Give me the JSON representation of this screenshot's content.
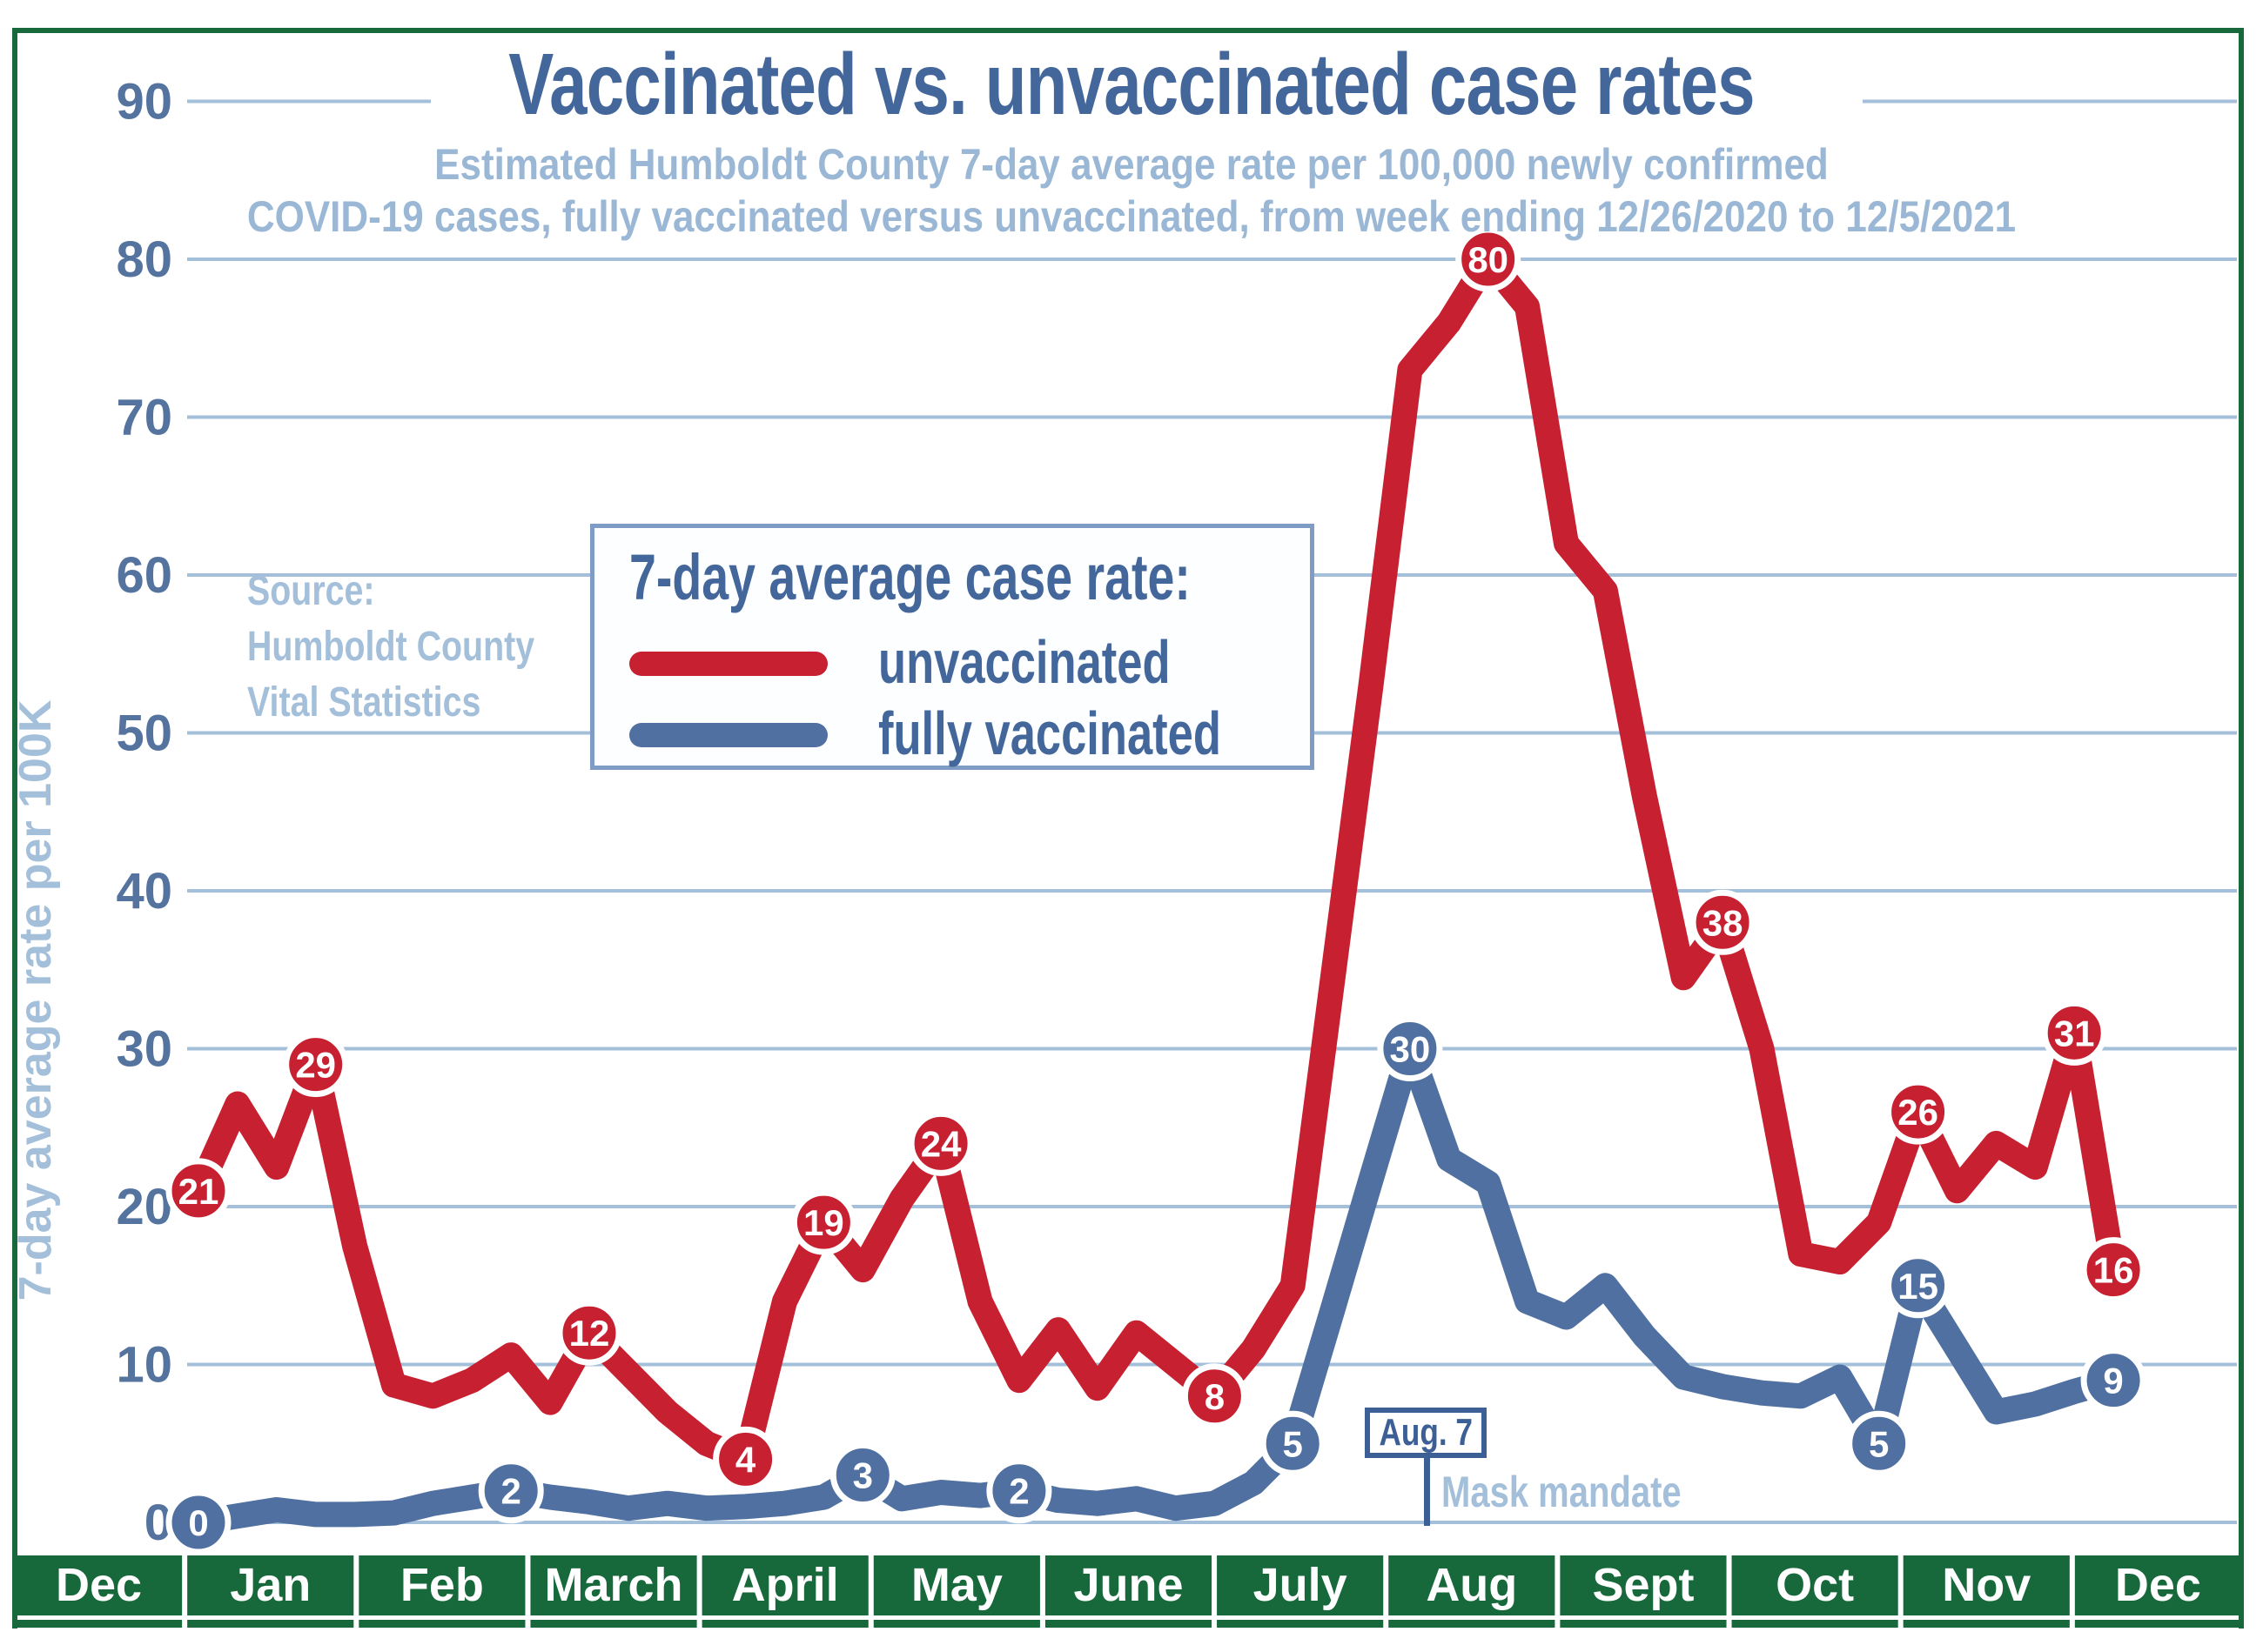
{
  "title": "Vaccinated vs. unvaccinated case rates",
  "subtitle_line1": "Estimated Humboldt County 7-day average rate per 100,000 newly confirmed",
  "subtitle_line2": "COVID-19 cases,  fully vaccinated versus unvaccinated, from week ending 12/26/2020 to 12/5/2021",
  "y_axis_title": "7-day average rate per 100K",
  "source": {
    "line1": "Source:",
    "line2": "Humboldt County",
    "line3": "Vital Statistics"
  },
  "legend": {
    "heading": "7-day average case rate:",
    "series1_label": "unvaccinated",
    "series2_label": "fully vaccinated"
  },
  "annotation": {
    "date_label": "Aug. 7",
    "text": "Mask mandate"
  },
  "colors": {
    "unvaccinated_red": "#c62031",
    "vaccinated_blue": "#4f70a0",
    "title_blue": "#44679b",
    "light_blue_text": "#a3bfda",
    "gridline_blue": "#a3bfd9",
    "month_bar_green": "#17693c",
    "tick_label_blue": "#54749f"
  },
  "chart_data": {
    "type": "line",
    "title": "Vaccinated vs. unvaccinated case rates",
    "x_axis_months": [
      "Dec",
      "Jan",
      "Feb",
      "March",
      "April",
      "May",
      "June",
      "July",
      "Aug",
      "Sept",
      "Oct",
      "Nov",
      "Dec"
    ],
    "x_unit": "weekly points, week ending 12/26/2020 to 12/5/2021",
    "y_ticks": [
      0,
      10,
      20,
      30,
      40,
      50,
      60,
      70,
      80,
      90
    ],
    "ylim": [
      0,
      90
    ],
    "grid": true,
    "legend_position": "upper-left",
    "series": [
      {
        "name": "unvaccinated",
        "color": "#c62031",
        "values": [
          21,
          26.5,
          22.5,
          29,
          17.5,
          8.7,
          8,
          9,
          10.6,
          7.6,
          12,
          9.5,
          7,
          5,
          4,
          14,
          19,
          16,
          20.5,
          24,
          14,
          9,
          12.2,
          8.5,
          12,
          10,
          8,
          11,
          15,
          34,
          53,
          73,
          76,
          80,
          77,
          62,
          59,
          46,
          34.5,
          38,
          30,
          17,
          16.5,
          19,
          26,
          21,
          24,
          22.5,
          31,
          16
        ],
        "labeled_points": {
          "0": "21",
          "3": "29",
          "10": "12",
          "14": "4",
          "16": "19",
          "19": "24",
          "26": "8",
          "33": "80",
          "39": "38",
          "44": "26",
          "48": "31",
          "49": "16"
        }
      },
      {
        "name": "fully vaccinated",
        "color": "#4f70a0",
        "values": [
          0,
          0.4,
          0.8,
          0.5,
          0.5,
          0.6,
          1.2,
          1.6,
          2,
          1.6,
          1.3,
          0.9,
          1.2,
          0.9,
          1,
          1.2,
          1.6,
          3,
          1.5,
          1.9,
          1.7,
          2,
          1.4,
          1.2,
          1.5,
          0.9,
          1.2,
          2.5,
          5,
          13.3,
          21.7,
          30,
          23,
          21.5,
          14,
          13,
          15,
          11.8,
          9.2,
          8.6,
          8.2,
          8,
          9.2,
          5,
          15,
          11,
          7,
          7.5,
          8.3,
          9
        ],
        "labeled_points": {
          "0": "0",
          "8": "2",
          "17": "3",
          "21": "2",
          "28": "5",
          "31": "30",
          "43": "5",
          "44": "15",
          "49": "9"
        }
      }
    ]
  }
}
